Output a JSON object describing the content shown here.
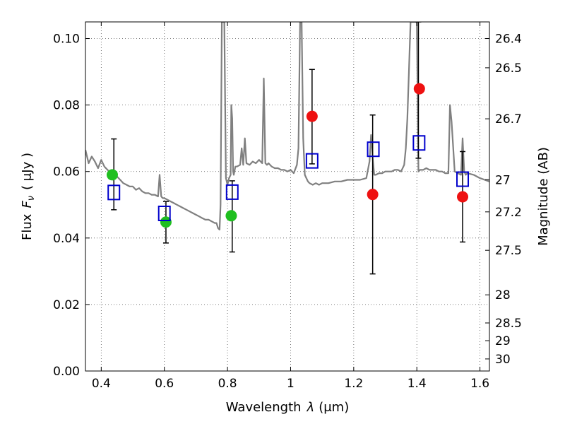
{
  "chart_data": {
    "type": "scatter",
    "xlabel_text": "Wavelength",
    "xlabel_symbol": "λ",
    "xlabel_unit": "(μm)",
    "ylabel_text": "Flux",
    "ylabel_symbol": "F",
    "ylabel_subscript": "ν",
    "ylabel_unit": "( μJy )",
    "y2label": "Magnitude (AB)",
    "xlim": [
      0.35,
      1.63
    ],
    "ylim": [
      0.0,
      0.105
    ],
    "grid": true,
    "x_ticks": [
      0.4,
      0.6,
      0.8,
      1.0,
      1.2,
      1.4,
      1.6
    ],
    "x_tick_labels": [
      "0.4",
      "0.6",
      "0.8",
      "1",
      "1.2",
      "1.4",
      "1.6"
    ],
    "y_ticks": [
      0.0,
      0.02,
      0.04,
      0.06,
      0.08,
      0.1
    ],
    "y_tick_labels": [
      "0.00",
      "0.02",
      "0.04",
      "0.06",
      "0.08",
      "0.10"
    ],
    "mag_ticks": [
      26.4,
      26.5,
      26.7,
      27,
      27.2,
      27.5,
      28,
      28.5,
      29,
      30
    ],
    "mag_tick_labels": [
      "26.4",
      "26.5",
      "26.7",
      "27",
      "27.2",
      "27.5",
      "28",
      "28.5",
      "29",
      "30"
    ],
    "colors": {
      "model": "#808080",
      "observed_green": "#1fbf1f",
      "observed_red": "#ee1111",
      "model_photometry": "#0000cc",
      "errorbar": "#000000"
    },
    "model_spectrum": {
      "name": "model spectrum",
      "x": [
        0.35,
        0.36,
        0.37,
        0.38,
        0.39,
        0.4,
        0.41,
        0.42,
        0.43,
        0.44,
        0.45,
        0.46,
        0.47,
        0.48,
        0.49,
        0.5,
        0.51,
        0.52,
        0.53,
        0.54,
        0.55,
        0.56,
        0.57,
        0.58,
        0.585,
        0.59,
        0.595,
        0.6,
        0.61,
        0.62,
        0.63,
        0.64,
        0.65,
        0.66,
        0.67,
        0.68,
        0.69,
        0.7,
        0.71,
        0.72,
        0.73,
        0.74,
        0.75,
        0.76,
        0.765,
        0.77,
        0.775,
        0.778,
        0.782,
        0.786,
        0.79,
        0.795,
        0.8,
        0.805,
        0.81,
        0.812,
        0.815,
        0.818,
        0.82,
        0.825,
        0.83,
        0.84,
        0.845,
        0.85,
        0.855,
        0.86,
        0.87,
        0.88,
        0.89,
        0.9,
        0.91,
        0.915,
        0.92,
        0.925,
        0.93,
        0.94,
        0.95,
        0.96,
        0.97,
        0.98,
        0.99,
        1.0,
        1.01,
        1.02,
        1.025,
        1.03,
        1.035,
        1.04,
        1.045,
        1.05,
        1.055,
        1.06,
        1.07,
        1.08,
        1.09,
        1.1,
        1.12,
        1.14,
        1.16,
        1.18,
        1.2,
        1.22,
        1.24,
        1.25,
        1.255,
        1.26,
        1.265,
        1.27,
        1.28,
        1.29,
        1.3,
        1.31,
        1.32,
        1.33,
        1.34,
        1.35,
        1.36,
        1.365,
        1.37,
        1.375,
        1.38,
        1.385,
        1.39,
        1.395,
        1.4,
        1.405,
        1.41,
        1.42,
        1.43,
        1.44,
        1.45,
        1.46,
        1.47,
        1.48,
        1.49,
        1.5,
        1.505,
        1.51,
        1.52,
        1.53,
        1.54,
        1.545,
        1.55,
        1.555,
        1.56,
        1.58,
        1.6,
        1.63
      ],
      "y": [
        0.0665,
        0.0625,
        0.0645,
        0.063,
        0.061,
        0.0635,
        0.0615,
        0.0605,
        0.0595,
        0.059,
        0.0585,
        0.0575,
        0.0565,
        0.056,
        0.0555,
        0.0555,
        0.0545,
        0.055,
        0.054,
        0.0535,
        0.0535,
        0.053,
        0.053,
        0.0525,
        0.059,
        0.0525,
        0.052,
        0.052,
        0.0515,
        0.051,
        0.0505,
        0.05,
        0.0495,
        0.049,
        0.0485,
        0.048,
        0.0475,
        0.047,
        0.0465,
        0.046,
        0.0455,
        0.0455,
        0.045,
        0.0445,
        0.0445,
        0.043,
        0.0425,
        0.05,
        0.105,
        0.105,
        0.105,
        0.058,
        0.056,
        0.058,
        0.059,
        0.08,
        0.076,
        0.06,
        0.059,
        0.0615,
        0.0615,
        0.062,
        0.067,
        0.062,
        0.07,
        0.0625,
        0.062,
        0.063,
        0.0625,
        0.0635,
        0.0625,
        0.088,
        0.0625,
        0.062,
        0.0625,
        0.0615,
        0.061,
        0.061,
        0.0605,
        0.0605,
        0.06,
        0.0605,
        0.0595,
        0.062,
        0.067,
        0.105,
        0.105,
        0.07,
        0.059,
        0.058,
        0.057,
        0.0565,
        0.056,
        0.0565,
        0.056,
        0.0565,
        0.0565,
        0.057,
        0.057,
        0.0575,
        0.0575,
        0.0575,
        0.058,
        0.063,
        0.071,
        0.064,
        0.059,
        0.059,
        0.0595,
        0.0595,
        0.06,
        0.06,
        0.06,
        0.0605,
        0.0605,
        0.06,
        0.062,
        0.067,
        0.076,
        0.09,
        0.105,
        0.105,
        0.105,
        0.105,
        0.105,
        0.06,
        0.0605,
        0.0605,
        0.061,
        0.0605,
        0.0605,
        0.0605,
        0.06,
        0.06,
        0.0595,
        0.0595,
        0.08,
        0.075,
        0.06,
        0.0595,
        0.059,
        0.07,
        0.06,
        0.059,
        0.0595,
        0.059,
        0.058,
        0.057
      ]
    },
    "observed_green": {
      "name": "observed (green)",
      "x": [
        0.435,
        0.605,
        0.812
      ],
      "y": [
        0.059,
        0.0448,
        0.0467
      ]
    },
    "observed_red": {
      "name": "observed (red)",
      "x": [
        1.068,
        1.26,
        1.408,
        1.545
      ],
      "y": [
        0.0766,
        0.0531,
        0.0849,
        0.0524
      ]
    },
    "model_photometry": {
      "name": "model photometry",
      "x": [
        0.44,
        0.6,
        0.815,
        1.068,
        1.262,
        1.407,
        1.545
      ],
      "y": [
        0.0537,
        0.0474,
        0.0538,
        0.0632,
        0.0667,
        0.0686,
        0.0577
      ]
    },
    "errorbars": [
      {
        "x": 0.44,
        "low": 0.0485,
        "high": 0.0698
      },
      {
        "x": 0.605,
        "low": 0.0385,
        "high": 0.051
      },
      {
        "x": 0.815,
        "low": 0.0358,
        "high": 0.0572
      },
      {
        "x": 1.068,
        "low": 0.0623,
        "high": 0.0907
      },
      {
        "x": 1.26,
        "low": 0.0292,
        "high": 0.077
      },
      {
        "x": 1.405,
        "low": 0.064,
        "high": 0.105
      },
      {
        "x": 1.545,
        "low": 0.0388,
        "high": 0.066
      }
    ]
  }
}
